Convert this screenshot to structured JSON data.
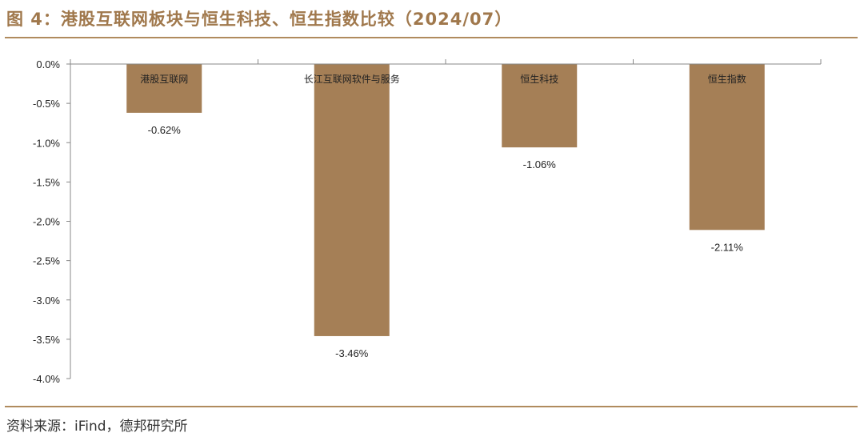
{
  "header": {
    "title": "图 4：港股互联网板块与恒生科技、恒生指数比较（2024/07）"
  },
  "footer": {
    "source": "资料来源：iFind，德邦研究所"
  },
  "chart_data": {
    "type": "bar",
    "categories": [
      "港股互联网",
      "长江互联网软件与服务",
      "恒生科技",
      "恒生指数"
    ],
    "values": [
      -0.62,
      -3.46,
      -1.06,
      -2.11
    ],
    "data_labels": [
      "-0.62%",
      "-3.46%",
      "-1.06%",
      "-2.11%"
    ],
    "ylim": [
      -4.0,
      0.0
    ],
    "yticks": [
      0.0,
      -0.5,
      -1.0,
      -1.5,
      -2.0,
      -2.5,
      -3.0,
      -3.5,
      -4.0
    ],
    "ytick_labels": [
      "0.0%",
      "-0.5%",
      "-1.0%",
      "-1.5%",
      "-2.0%",
      "-2.5%",
      "-3.0%",
      "-3.5%",
      "-4.0%"
    ],
    "grid": false,
    "legend": "none",
    "bar_color": "#a57f56"
  }
}
